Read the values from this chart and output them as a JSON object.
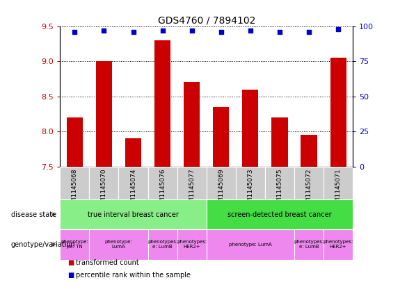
{
  "title": "GDS4760 / 7894102",
  "samples": [
    "GSM1145068",
    "GSM1145070",
    "GSM1145074",
    "GSM1145076",
    "GSM1145077",
    "GSM1145069",
    "GSM1145073",
    "GSM1145075",
    "GSM1145072",
    "GSM1145071"
  ],
  "transformed_counts": [
    8.2,
    9.0,
    7.9,
    9.3,
    8.7,
    8.35,
    8.6,
    8.2,
    7.95,
    9.05
  ],
  "percentile_ranks": [
    96,
    97,
    96,
    97,
    97,
    96,
    97,
    96,
    96,
    98
  ],
  "ylim_left": [
    7.5,
    9.5
  ],
  "ylim_right": [
    0,
    100
  ],
  "yticks_left": [
    7.5,
    8.0,
    8.5,
    9.0,
    9.5
  ],
  "yticks_right": [
    0,
    25,
    50,
    75,
    100
  ],
  "bar_color": "#cc0000",
  "dot_color": "#0000cc",
  "plot_bg_color": "#ffffff",
  "sample_label_bg": "#cccccc",
  "disease_state_groups": [
    {
      "label": "true interval breast cancer",
      "start": 0,
      "end": 5,
      "color": "#88ee88"
    },
    {
      "label": "screen-detected breast cancer",
      "start": 5,
      "end": 10,
      "color": "#44dd44"
    }
  ],
  "genotype_groups": [
    {
      "label": "phenotype:\npe: TN",
      "start": 0,
      "end": 1,
      "color": "#ee88ee"
    },
    {
      "label": "phenotype:\nLumA",
      "start": 1,
      "end": 3,
      "color": "#ee88ee"
    },
    {
      "label": "phenotypes:\ne: LumB",
      "start": 3,
      "end": 4,
      "color": "#ee88ee"
    },
    {
      "label": "phenotypes:\nHER2+",
      "start": 4,
      "end": 5,
      "color": "#ee88ee"
    },
    {
      "label": "phenotype: LumA",
      "start": 5,
      "end": 8,
      "color": "#ee88ee"
    },
    {
      "label": "phenotypes:\ne: LumB",
      "start": 8,
      "end": 9,
      "color": "#ee88ee"
    },
    {
      "label": "phenotypes:\nHER2+",
      "start": 9,
      "end": 10,
      "color": "#ee88ee"
    }
  ],
  "left_tick_color": "#cc0000",
  "right_tick_color": "#0000cc",
  "legend_items": [
    {
      "label": "transformed count",
      "color": "#cc0000"
    },
    {
      "label": "percentile rank within the sample",
      "color": "#0000cc"
    }
  ]
}
